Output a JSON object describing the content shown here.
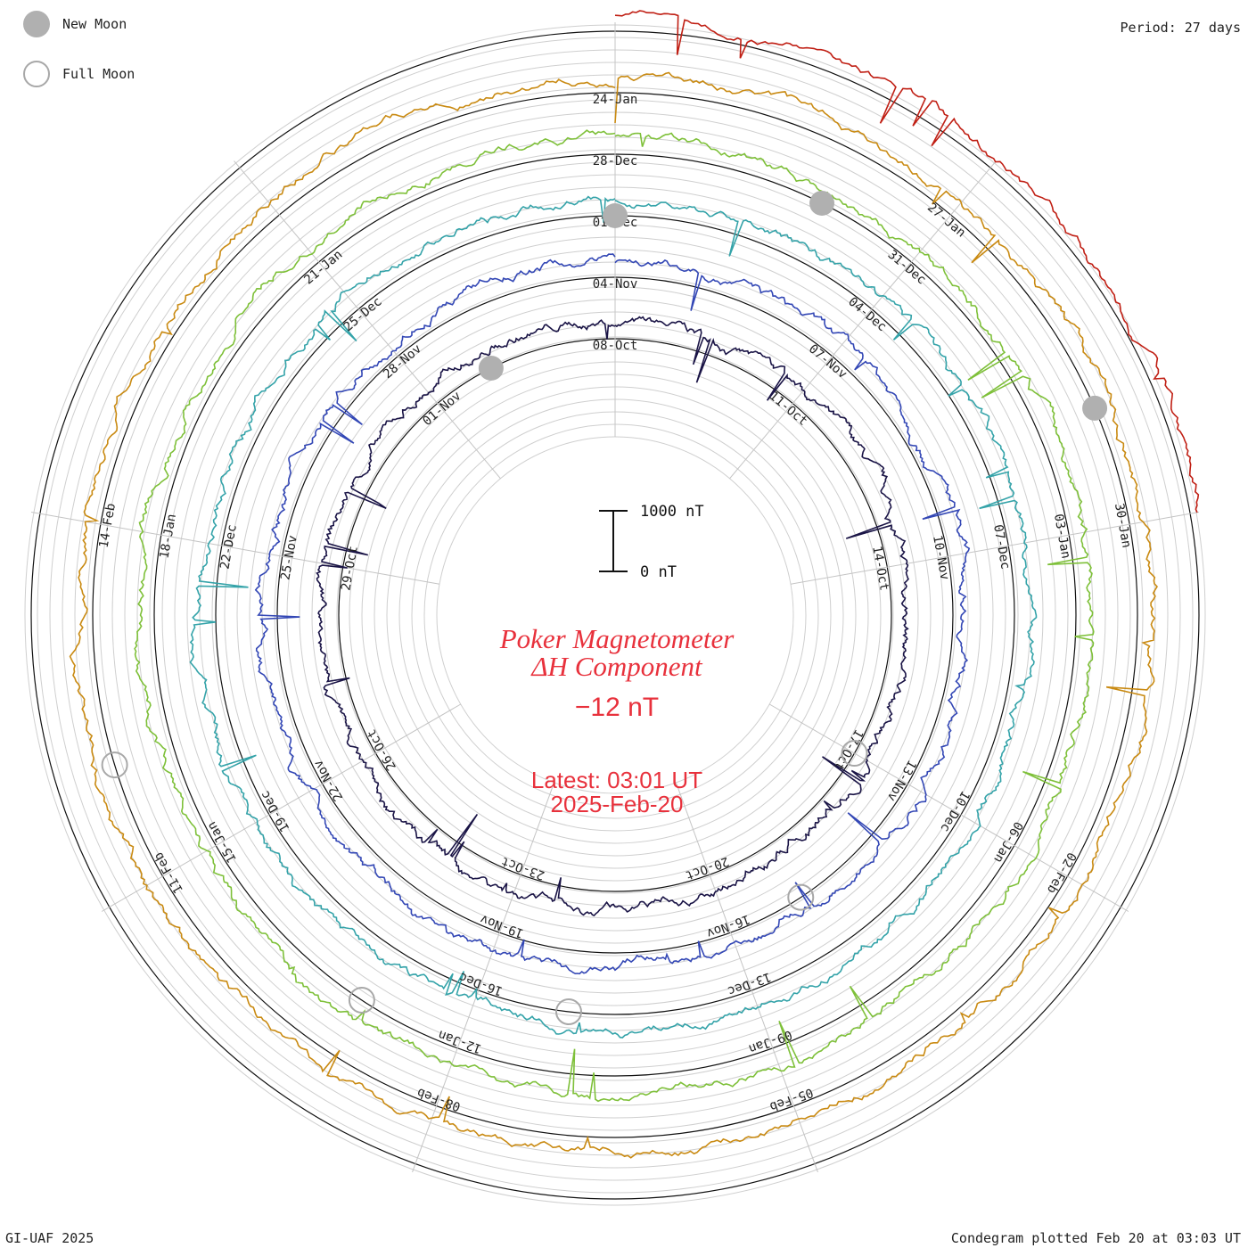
{
  "legend": {
    "new_moon_label": "New Moon",
    "full_moon_label": "Full Moon",
    "new_moon_color": "#b0b0b0",
    "full_moon_stroke": "#a8a8a8"
  },
  "period_label": "Period: 27 days",
  "footer_left": "GI-UAF 2025",
  "footer_right": "Condegram plotted Feb 20 at 03:03 UT",
  "center": {
    "title_line1": "Poker Magnetometer",
    "title_line2": "ΔH Component",
    "current_value": "−12 nT",
    "latest_line1": "Latest: 03:01 UT",
    "latest_line2": "2025-Feb-20",
    "text_color": "#e8313c"
  },
  "scale_bar": {
    "top_label": "1000 nT",
    "bottom_label": "0 nT"
  },
  "chart_data": {
    "type": "line",
    "projection": "polar spiral (condegram)",
    "period_days": 27,
    "scale_bar_nT": 1000,
    "grid": true,
    "rotations": [
      {
        "start": "08-Oct",
        "color": "#1a1446",
        "ticks": [
          "08-Oct",
          "11-Oct",
          "14-Oct",
          "17-Oct",
          "20-Oct",
          "23-Oct",
          "26-Oct",
          "29-Oct",
          "01-Nov"
        ]
      },
      {
        "start": "04-Nov",
        "color": "#3347b5",
        "ticks": [
          "04-Nov",
          "07-Nov",
          "10-Nov",
          "13-Nov",
          "16-Nov",
          "19-Nov",
          "22-Nov",
          "25-Nov",
          "28-Nov"
        ]
      },
      {
        "start": "01-Dec",
        "color": "#34a3a9",
        "ticks": [
          "01-Dec",
          "04-Dec",
          "07-Dec",
          "10-Dec",
          "13-Dec",
          "16-Dec",
          "19-Dec",
          "22-Dec",
          "25-Dec"
        ]
      },
      {
        "start": "28-Dec",
        "color": "#7ec039",
        "ticks": [
          "28-Dec",
          "31-Dec",
          "03-Jan",
          "06-Jan",
          "09-Jan",
          "12-Jan",
          "15-Jan",
          "18-Jan",
          "21-Jan"
        ]
      },
      {
        "start": "24-Jan",
        "color": "#c98a12",
        "ticks": [
          "24-Jan",
          "27-Jan",
          "30-Jan",
          "02-Feb",
          "05-Feb",
          "08-Feb",
          "11-Feb",
          "14-Feb"
        ]
      },
      {
        "start": "14-Feb",
        "color": "#c01f14",
        "ticks": []
      }
    ],
    "new_moons": [
      "02-Nov",
      "01-Dec",
      "30-Dec",
      "29-Jan"
    ],
    "full_moons": [
      "17-Oct",
      "15-Nov",
      "15-Dec",
      "13-Jan",
      "12-Feb"
    ],
    "latest_value_nT": -12
  }
}
